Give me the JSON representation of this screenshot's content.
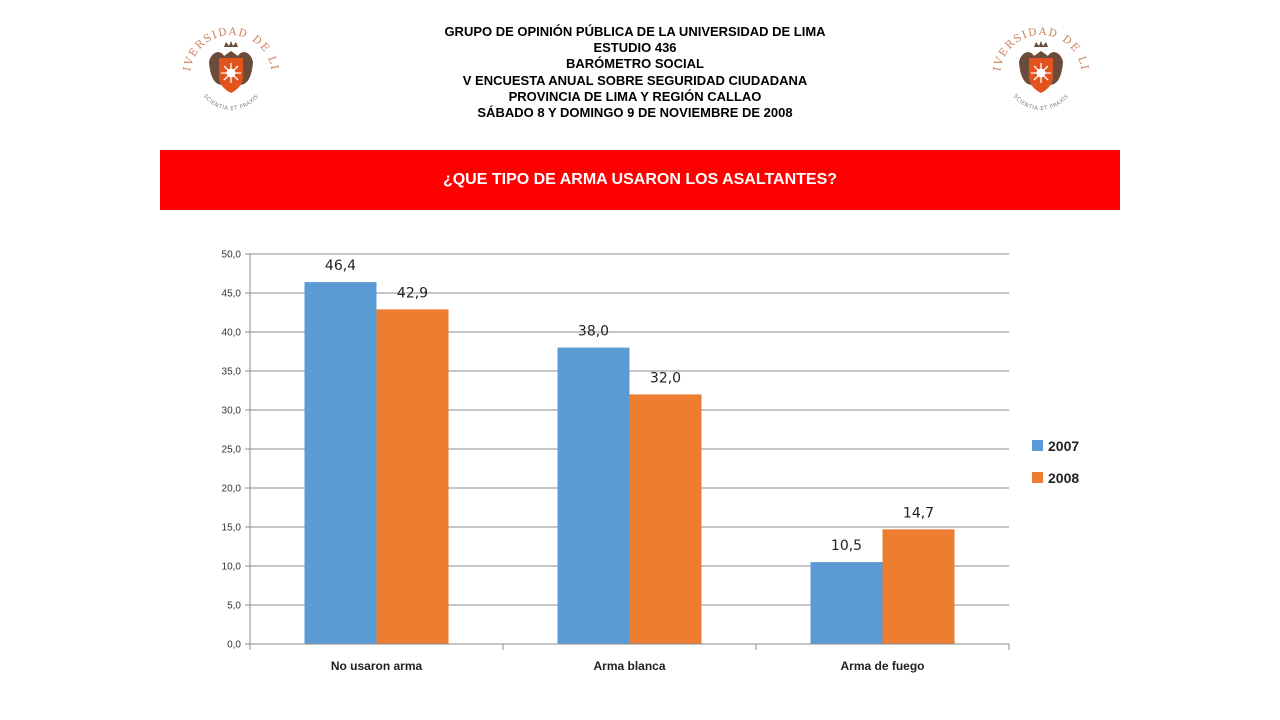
{
  "header": {
    "lines": [
      "GRUPO DE OPINIÓN PÚBLICA DE LA UNIVERSIDAD DE LIMA",
      "ESTUDIO 436",
      "BARÓMETRO SOCIAL",
      "V ENCUESTA ANUAL SOBRE SEGURIDAD CIUDADANA",
      "PROVINCIA DE LIMA Y REGIÓN CALLAO",
      "SÁBADO 8 Y DOMINGO 9 DE NOVIEMBRE DE 2008"
    ]
  },
  "logo": {
    "top_text": "UNIVERSIDAD DE LIMA",
    "motto": "SCIENTIA ET PRAXIS",
    "color": "#c9815a",
    "shield_color": "#e2531e"
  },
  "banner": {
    "title": "¿QUE TIPO DE ARMA USARON LOS ASALTANTES?",
    "color": "#ff0000"
  },
  "chart_data": {
    "type": "bar",
    "categories": [
      "No usaron arma",
      "Arma blanca",
      "Arma de fuego"
    ],
    "series": [
      {
        "name": "2007",
        "values": [
          46.4,
          38.0,
          10.5
        ],
        "color": "#5b9bd5"
      },
      {
        "name": "2008",
        "values": [
          42.9,
          32.0,
          14.7
        ],
        "color": "#ed7d31"
      }
    ],
    "data_labels": [
      [
        "46,4",
        "38,0",
        "10,5"
      ],
      [
        "42,9",
        "32,0",
        "14,7"
      ]
    ],
    "yticks": [
      "0,0",
      "5,0",
      "10,0",
      "15,0",
      "20,0",
      "25,0",
      "30,0",
      "35,0",
      "40,0",
      "45,0",
      "50,0"
    ],
    "ylim": [
      0,
      50
    ],
    "grid": true,
    "legend": "right"
  }
}
